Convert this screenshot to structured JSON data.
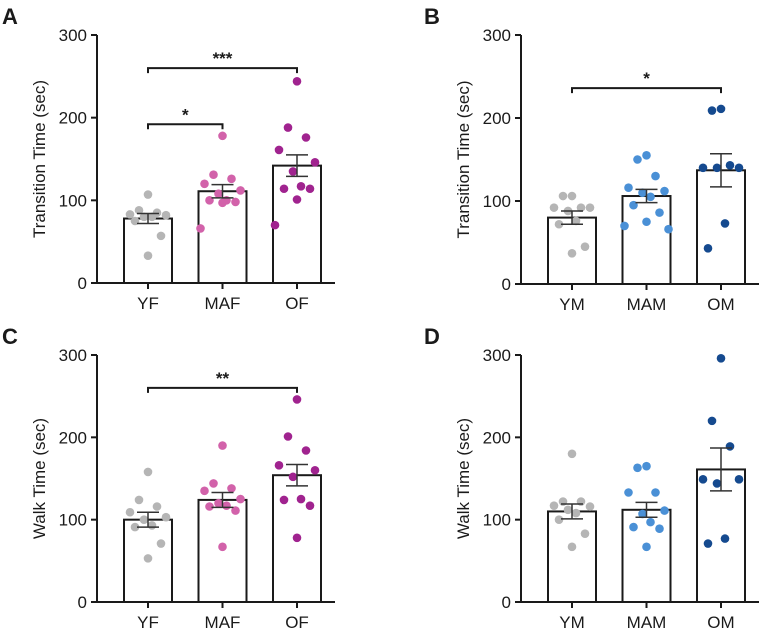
{
  "chart_data": [
    {
      "panel": "A",
      "type": "bar",
      "ylabel": "Transition Time (sec)",
      "ylim": [
        0,
        300
      ],
      "yticks": [
        0,
        100,
        200,
        300
      ],
      "categories": [
        "YF",
        "MAF",
        "OF"
      ],
      "colors": [
        "#b5b5b5",
        "#d262aa",
        "#a0238f"
      ],
      "means": [
        78,
        111,
        142
      ],
      "sem": [
        6,
        8,
        13
      ],
      "points": [
        [
          107,
          88,
          85,
          83,
          82,
          80,
          80,
          75,
          57,
          33
        ],
        [
          178,
          131,
          126,
          120,
          112,
          108,
          100,
          100,
          98,
          97,
          66
        ],
        [
          244,
          188,
          176,
          161,
          146,
          135,
          117,
          114,
          114,
          101,
          70
        ]
      ],
      "significance": [
        {
          "from": 0,
          "to": 1,
          "label": "*",
          "y": 192
        },
        {
          "from": 0,
          "to": 2,
          "label": "***",
          "y": 260
        }
      ]
    },
    {
      "panel": "B",
      "type": "bar",
      "ylabel": "Transition Time (sec)",
      "ylim": [
        0,
        300
      ],
      "yticks": [
        0,
        100,
        200,
        300
      ],
      "categories": [
        "YM",
        "MAM",
        "OM"
      ],
      "colors": [
        "#b5b5b5",
        "#4a90d6",
        "#154a8f"
      ],
      "means": [
        80,
        106,
        137
      ],
      "sem": [
        8,
        8,
        20
      ],
      "points": [
        [
          106,
          106,
          92,
          92,
          92,
          88,
          76,
          72,
          45,
          37
        ],
        [
          155,
          150,
          130,
          116,
          112,
          110,
          105,
          95,
          86,
          75,
          70,
          66
        ],
        [
          211,
          209,
          143,
          140,
          140,
          140,
          73,
          43
        ]
      ],
      "significance": [
        {
          "from": 0,
          "to": 2,
          "label": "*",
          "y": 236
        }
      ]
    },
    {
      "panel": "C",
      "type": "bar",
      "ylabel": "Walk Time (sec)",
      "ylim": [
        0,
        300
      ],
      "yticks": [
        0,
        100,
        200,
        300
      ],
      "categories": [
        "YF",
        "MAF",
        "OF"
      ],
      "colors": [
        "#b5b5b5",
        "#d262aa",
        "#a0238f"
      ],
      "means": [
        100,
        124,
        154
      ],
      "sem": [
        9,
        9,
        13
      ],
      "points": [
        [
          158,
          124,
          116,
          109,
          103,
          100,
          93,
          91,
          71,
          53
        ],
        [
          190,
          144,
          138,
          135,
          125,
          120,
          117,
          116,
          111,
          67
        ],
        [
          246,
          201,
          184,
          166,
          160,
          152,
          125,
          124,
          117,
          78
        ]
      ],
      "significance": [
        {
          "from": 0,
          "to": 2,
          "label": "**",
          "y": 260
        }
      ]
    },
    {
      "panel": "D",
      "type": "bar",
      "ylabel": "Walk Time (sec)",
      "ylim": [
        0,
        300
      ],
      "yticks": [
        0,
        100,
        200,
        300
      ],
      "categories": [
        "YM",
        "MAM",
        "OM"
      ],
      "colors": [
        "#b5b5b5",
        "#4a90d6",
        "#154a8f"
      ],
      "means": [
        110,
        112,
        161
      ],
      "sem": [
        9,
        9,
        26
      ],
      "points": [
        [
          180,
          122,
          122,
          117,
          116,
          112,
          108,
          100,
          83,
          67
        ],
        [
          165,
          163,
          133,
          133,
          111,
          107,
          97,
          91,
          89,
          67
        ],
        [
          296,
          220,
          189,
          149,
          149,
          144,
          77,
          71
        ]
      ],
      "significance": []
    }
  ]
}
